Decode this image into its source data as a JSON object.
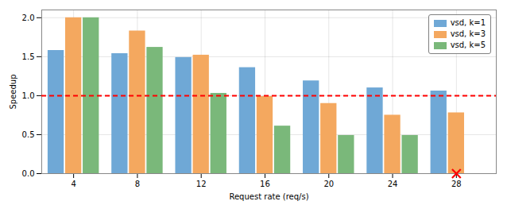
{
  "chart_data": {
    "type": "bar",
    "x": [
      4,
      8,
      12,
      16,
      20,
      24,
      28
    ],
    "series": [
      {
        "name": "vsd, k=1",
        "color": "#6fa8d6",
        "values": [
          1.58,
          1.54,
          1.49,
          1.36,
          1.19,
          1.1,
          1.06
        ]
      },
      {
        "name": "vsd, k=3",
        "color": "#f4a85f",
        "values": [
          2.0,
          1.83,
          1.52,
          0.99,
          0.9,
          0.75,
          0.78
        ]
      },
      {
        "name": "vsd, k=5",
        "color": "#7ab87a",
        "values": [
          2.0,
          1.62,
          1.03,
          0.61,
          0.49,
          0.49,
          null
        ]
      }
    ],
    "xlabel": "Request rate (req/s)",
    "ylabel": "Speedup",
    "xlim": [
      2.0,
      30.5
    ],
    "xticks": [
      4,
      8,
      12,
      16,
      20,
      24,
      28
    ],
    "ylim": [
      0,
      2.1
    ],
    "yticks": [
      {
        "value": 0,
        "label": "0.0"
      },
      0.5,
      {
        "value": 1,
        "label": "1.0"
      },
      1.5,
      {
        "value": 2,
        "label": "2.0"
      }
    ],
    "hlines": [
      {
        "value": 1.0,
        "color": "#ff0000",
        "line_style": "dashed"
      }
    ],
    "markers": [
      {
        "x": 28,
        "y": 0,
        "color": "#ff0000",
        "marker": "x"
      }
    ],
    "grid": true,
    "legend": "upper right"
  }
}
